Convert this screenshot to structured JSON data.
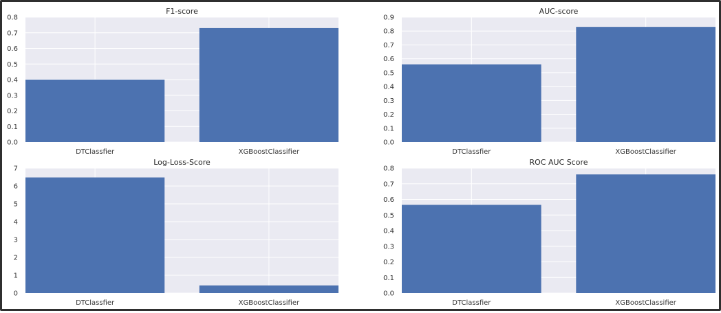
{
  "chart_data": [
    {
      "type": "bar",
      "title": "F1-score",
      "categories": [
        "DTClassfier",
        "XGBoostClassifier"
      ],
      "values": [
        0.4,
        0.73
      ],
      "ylim": [
        0,
        0.8
      ],
      "yticks": [
        "0.0",
        "0.1",
        "0.2",
        "0.3",
        "0.4",
        "0.5",
        "0.6",
        "0.7",
        "0.8"
      ],
      "grid": true,
      "bar_color": "#4c72b0",
      "background": "#eaeaf2"
    },
    {
      "type": "bar",
      "title": "AUC-score",
      "categories": [
        "DTClassfier",
        "XGBoostClassifier"
      ],
      "values": [
        0.56,
        0.83
      ],
      "ylim": [
        0,
        0.9
      ],
      "yticks": [
        "0.0",
        "0.1",
        "0.2",
        "0.3",
        "0.4",
        "0.5",
        "0.6",
        "0.7",
        "0.8",
        "0.9"
      ],
      "grid": true,
      "bar_color": "#4c72b0",
      "background": "#eaeaf2"
    },
    {
      "type": "bar",
      "title": "Log-Loss-Score",
      "categories": [
        "DTClassfier",
        "XGBoostClassifier"
      ],
      "values": [
        6.48,
        0.43
      ],
      "ylim": [
        0,
        7
      ],
      "yticks": [
        "0",
        "1",
        "2",
        "3",
        "4",
        "5",
        "6",
        "7"
      ],
      "grid": true,
      "bar_color": "#4c72b0",
      "background": "#eaeaf2"
    },
    {
      "type": "bar",
      "title": "ROC AUC Score",
      "categories": [
        "DTClassfier",
        "XGBoostClassifier"
      ],
      "values": [
        0.565,
        0.76
      ],
      "ylim": [
        0,
        0.8
      ],
      "yticks": [
        "0.0",
        "0.1",
        "0.2",
        "0.3",
        "0.4",
        "0.5",
        "0.6",
        "0.7",
        "0.8"
      ],
      "grid": true,
      "bar_color": "#4c72b0",
      "background": "#eaeaf2"
    }
  ]
}
